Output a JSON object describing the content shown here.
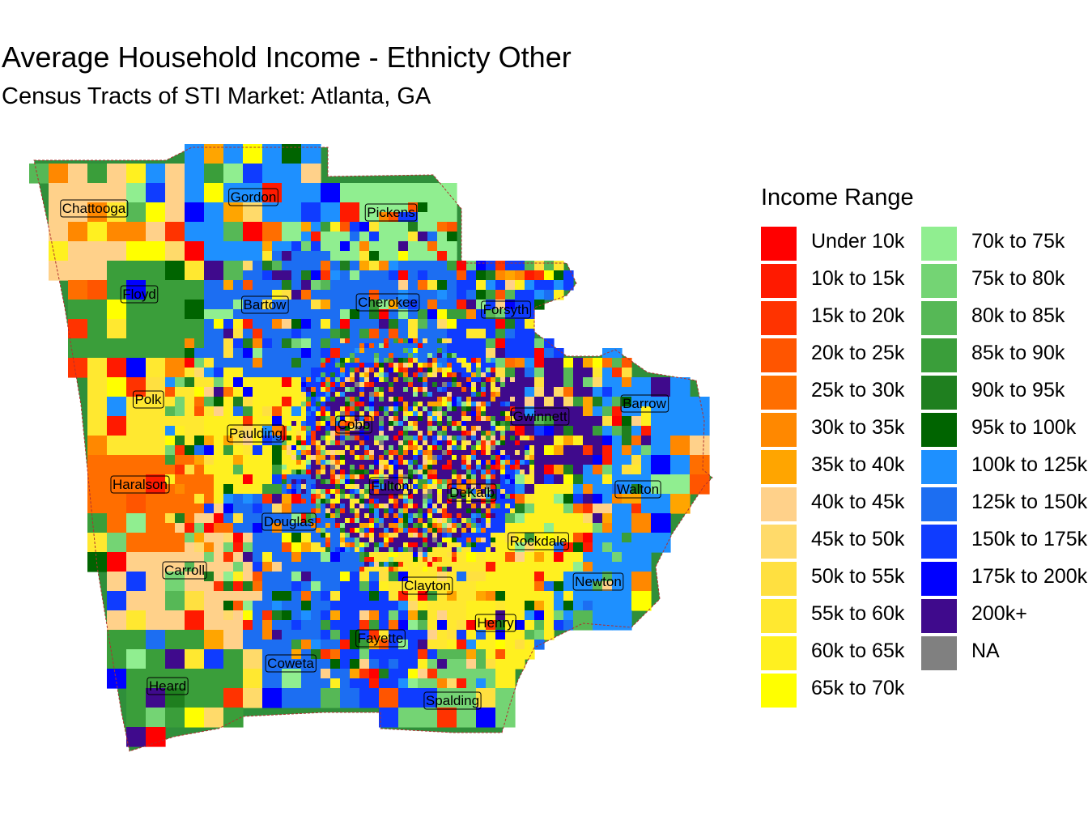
{
  "title": "Average Household Income - Ethnicty Other",
  "subtitle": "Census Tracts of STI Market: Atlanta, GA",
  "legend": {
    "title": "Income Range",
    "items": [
      {
        "label": "Under 10k",
        "color": "#FF0000"
      },
      {
        "label": "10k to 15k",
        "color": "#FF1A00"
      },
      {
        "label": "15k to 20k",
        "color": "#FF3300"
      },
      {
        "label": "20k to 25k",
        "color": "#FF5500"
      },
      {
        "label": "25k to 30k",
        "color": "#FF6E00"
      },
      {
        "label": "30k to 35k",
        "color": "#FF8800"
      },
      {
        "label": "35k to 40k",
        "color": "#FFA500"
      },
      {
        "label": "40k to 45k",
        "color": "#FFD18A"
      },
      {
        "label": "45k to 50k",
        "color": "#FFDA6A"
      },
      {
        "label": "50k to 55k",
        "color": "#FFE040"
      },
      {
        "label": "55k to 60k",
        "color": "#FFE830"
      },
      {
        "label": "60k to 65k",
        "color": "#FFF020"
      },
      {
        "label": "65k to 70k",
        "color": "#FFFF00"
      },
      {
        "label": "70k to 75k",
        "color": "#90EE90"
      },
      {
        "label": "75k to 80k",
        "color": "#74D474"
      },
      {
        "label": "80k to 85k",
        "color": "#56B856"
      },
      {
        "label": "85k to 90k",
        "color": "#3A9E3A"
      },
      {
        "label": "90k to 95k",
        "color": "#1F7F1F"
      },
      {
        "label": "95k to 100k",
        "color": "#006400"
      },
      {
        "label": "100k to 125k",
        "color": "#1E90FF"
      },
      {
        "label": "125k to 150k",
        "color": "#1C6EF2"
      },
      {
        "label": "150k to 175k",
        "color": "#0F3CFF"
      },
      {
        "label": "175k to 200k",
        "color": "#0000FF"
      },
      {
        "label": "200k+",
        "color": "#3F0A8C"
      },
      {
        "label": "NA",
        "color": "#808080"
      }
    ]
  },
  "counties": [
    {
      "name": "Chattooga",
      "income": "40k to 45k"
    },
    {
      "name": "Gordon",
      "income": "100k to 125k"
    },
    {
      "name": "Pickens",
      "income": "70k to 75k"
    },
    {
      "name": "Floyd",
      "income": "85k to 90k"
    },
    {
      "name": "Bartow",
      "income": "125k to 150k"
    },
    {
      "name": "Cherokee",
      "income": "125k to 150k"
    },
    {
      "name": "Forsyth",
      "income": "150k to 175k"
    },
    {
      "name": "Polk",
      "income": "55k to 60k"
    },
    {
      "name": "Paulding",
      "income": "60k to 65k"
    },
    {
      "name": "Cobb",
      "income": "150k to 175k"
    },
    {
      "name": "Gwinnett",
      "income": "200k+"
    },
    {
      "name": "Barrow",
      "income": "100k to 125k"
    },
    {
      "name": "Haralson",
      "income": "25k to 30k"
    },
    {
      "name": "Fulton",
      "income": "200k+"
    },
    {
      "name": "DeKalb",
      "income": "150k to 175k"
    },
    {
      "name": "Walton",
      "income": "100k to 125k"
    },
    {
      "name": "Douglas",
      "income": "125k to 150k"
    },
    {
      "name": "Rockdale",
      "income": "60k to 65k"
    },
    {
      "name": "Carroll",
      "income": "40k to 45k"
    },
    {
      "name": "Clayton",
      "income": "55k to 60k"
    },
    {
      "name": "Newton",
      "income": "100k to 125k"
    },
    {
      "name": "Henry",
      "income": "60k to 65k"
    },
    {
      "name": "Fayette",
      "income": "150k to 175k"
    },
    {
      "name": "Coweta",
      "income": "125k to 150k"
    },
    {
      "name": "Heard",
      "income": "85k to 90k"
    },
    {
      "name": "Spalding",
      "income": "75k to 80k"
    }
  ]
}
